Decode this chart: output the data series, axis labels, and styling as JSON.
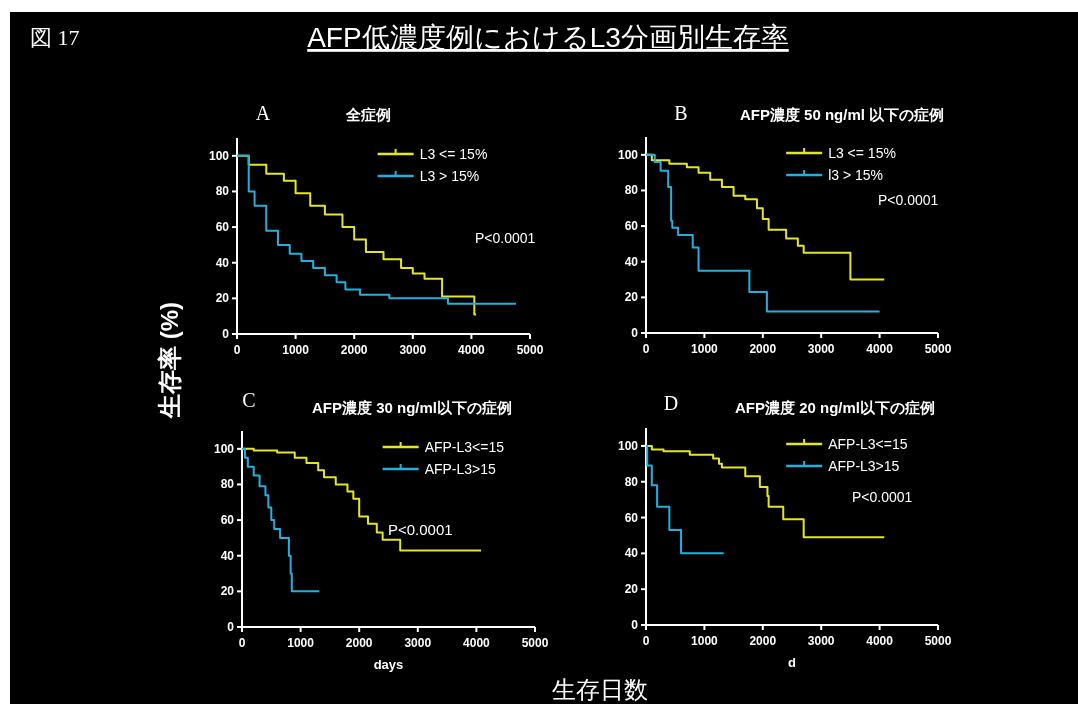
{
  "chart_data": [
    {
      "type": "step",
      "title": "全症例",
      "xlim": [
        0,
        5000
      ],
      "ylim": [
        0,
        110
      ],
      "xticks": [
        0,
        1000,
        2000,
        3000,
        4000,
        5000
      ],
      "yticks": [
        0,
        20,
        40,
        60,
        80,
        100
      ],
      "legend": "top right",
      "annotations": [
        "A",
        "P<0.0001",
        "図 17",
        "AFP低濃度例におけるL3分画別生存率",
        "生存率 (%)",
        "生存日数"
      ],
      "series": [
        {
          "name": "L3 <= 15%",
          "color": "#e6e61e",
          "x": [
            0,
            200,
            500,
            800,
            1000,
            1250,
            1500,
            1800,
            2000,
            2200,
            2500,
            2800,
            3000,
            3200,
            3500,
            4050,
            4080
          ],
          "values": [
            100,
            95,
            90,
            86,
            79,
            72,
            67,
            60,
            53,
            46,
            42,
            37,
            34,
            31,
            21,
            11,
            11
          ]
        },
        {
          "name": "L3 > 15%",
          "color": "#22b0e0",
          "x": [
            0,
            200,
            300,
            500,
            700,
            900,
            1100,
            1300,
            1500,
            1700,
            1850,
            2100,
            2600,
            3600,
            4760
          ],
          "values": [
            100,
            80,
            72,
            58,
            50,
            45,
            41,
            37,
            33,
            29,
            25,
            22,
            20,
            17,
            17
          ]
        }
      ]
    },
    {
      "type": "step",
      "title": "AFP濃度  50 ng/ml 以下の症例",
      "xlim": [
        0,
        5000
      ],
      "ylim": [
        0,
        110
      ],
      "xticks": [
        0,
        1000,
        2000,
        3000,
        4000,
        5000
      ],
      "yticks": [
        0,
        20,
        40,
        60,
        80,
        100
      ],
      "legend": "top right",
      "annotations": [
        "B",
        "P<0.0001"
      ],
      "series": [
        {
          "name": "L3 <= 15%",
          "color": "#e6e61e",
          "x": [
            0,
            100,
            400,
            700,
            900,
            1100,
            1300,
            1500,
            1700,
            1900,
            2000,
            2100,
            2400,
            2600,
            2700,
            3500,
            4080
          ],
          "values": [
            100,
            97,
            95,
            93,
            90,
            86,
            82,
            77,
            75,
            70,
            64,
            58,
            53,
            49,
            45,
            30,
            30
          ]
        },
        {
          "name": "l3 >  15%",
          "color": "#22b0e0",
          "x": [
            0,
            150,
            250,
            380,
            430,
            450,
            550,
            800,
            900,
            1770,
            2070,
            4000
          ],
          "values": [
            100,
            96,
            91,
            82,
            63,
            59,
            55,
            48,
            35,
            23,
            12,
            12
          ]
        }
      ]
    },
    {
      "type": "step",
      "title": "AFP濃度  30 ng/ml以下の症例",
      "xlabel": "days",
      "xlim": [
        0,
        5000
      ],
      "ylim": [
        0,
        110
      ],
      "xticks": [
        0,
        1000,
        2000,
        3000,
        4000,
        5000
      ],
      "yticks": [
        0,
        20,
        40,
        60,
        80,
        100
      ],
      "legend": "top right",
      "annotations": [
        "C",
        "P<0.0001"
      ],
      "series": [
        {
          "name": "AFP-L3<=15",
          "color": "#e6e61e",
          "x": [
            0,
            200,
            600,
            900,
            1100,
            1300,
            1400,
            1600,
            1800,
            1900,
            2000,
            2150,
            2300,
            2400,
            2700,
            4080
          ],
          "values": [
            100,
            99,
            98,
            95,
            92,
            88,
            84,
            80,
            76,
            72,
            62,
            58,
            53,
            49,
            43,
            43
          ]
        },
        {
          "name": "AFP-L3>15",
          "color": "#22b0e0",
          "x": [
            0,
            50,
            100,
            200,
            300,
            400,
            450,
            500,
            550,
            650,
            800,
            830,
            850,
            1320
          ],
          "values": [
            100,
            95,
            90,
            85,
            79,
            74,
            67,
            60,
            55,
            50,
            40,
            30,
            20,
            20
          ]
        }
      ]
    },
    {
      "type": "step",
      "title": "AFP濃度 20 ng/ml以下の症例",
      "xlabel": "d",
      "xlim": [
        0,
        5000
      ],
      "ylim": [
        0,
        110
      ],
      "xticks": [
        0,
        1000,
        2000,
        3000,
        4000,
        5000
      ],
      "yticks": [
        0,
        20,
        40,
        60,
        80,
        100
      ],
      "legend": "top right",
      "annotations": [
        "D",
        "P<0.0001"
      ],
      "series": [
        {
          "name": "AFP-L3<=15",
          "color": "#e6e61e",
          "x": [
            0,
            100,
            300,
            750,
            1150,
            1250,
            1300,
            1700,
            1950,
            2080,
            2100,
            2350,
            2700,
            4080
          ],
          "values": [
            100,
            98,
            97,
            95,
            93,
            90,
            88,
            83,
            77,
            72,
            66,
            59,
            49,
            49
          ]
        },
        {
          "name": "AFP-L3>15",
          "color": "#22b0e0",
          "x": [
            0,
            20,
            100,
            190,
            400,
            600,
            1330
          ],
          "values": [
            100,
            89,
            78,
            66,
            53,
            40,
            40
          ]
        }
      ]
    }
  ]
}
